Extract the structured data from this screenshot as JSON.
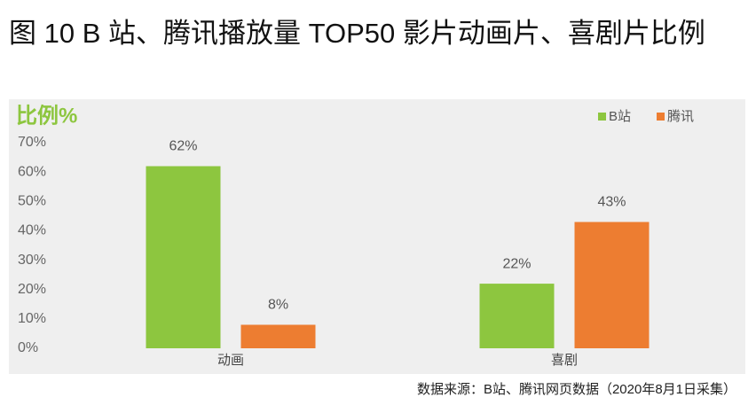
{
  "chart_data": {
    "type": "bar",
    "title": "图 10 B 站、腾讯播放量 TOP50 影片动画片、喜剧片比例",
    "y_label": "比例%",
    "categories": [
      "动画",
      "喜剧"
    ],
    "series": [
      {
        "name": "B站",
        "color": "#8dc63f",
        "values": [
          62,
          22
        ],
        "value_labels": [
          "62%",
          "22%"
        ]
      },
      {
        "name": "腾讯",
        "color": "#ed7d31",
        "values": [
          8,
          43
        ],
        "value_labels": [
          "8%",
          "43%"
        ]
      }
    ],
    "ylim": [
      0,
      70
    ],
    "yticks": [
      {
        "value": 0,
        "label": "0%"
      },
      {
        "value": 10,
        "label": "10%"
      },
      {
        "value": 20,
        "label": "20%"
      },
      {
        "value": 30,
        "label": "30%"
      },
      {
        "value": 40,
        "label": "40%"
      },
      {
        "value": 50,
        "label": "50%"
      },
      {
        "value": 60,
        "label": "60%"
      },
      {
        "value": 70,
        "label": "70%"
      }
    ],
    "grid": false,
    "legend": "top-right",
    "source": "数据来源：B站、腾讯网页数据（2020年8月1日采集）"
  }
}
